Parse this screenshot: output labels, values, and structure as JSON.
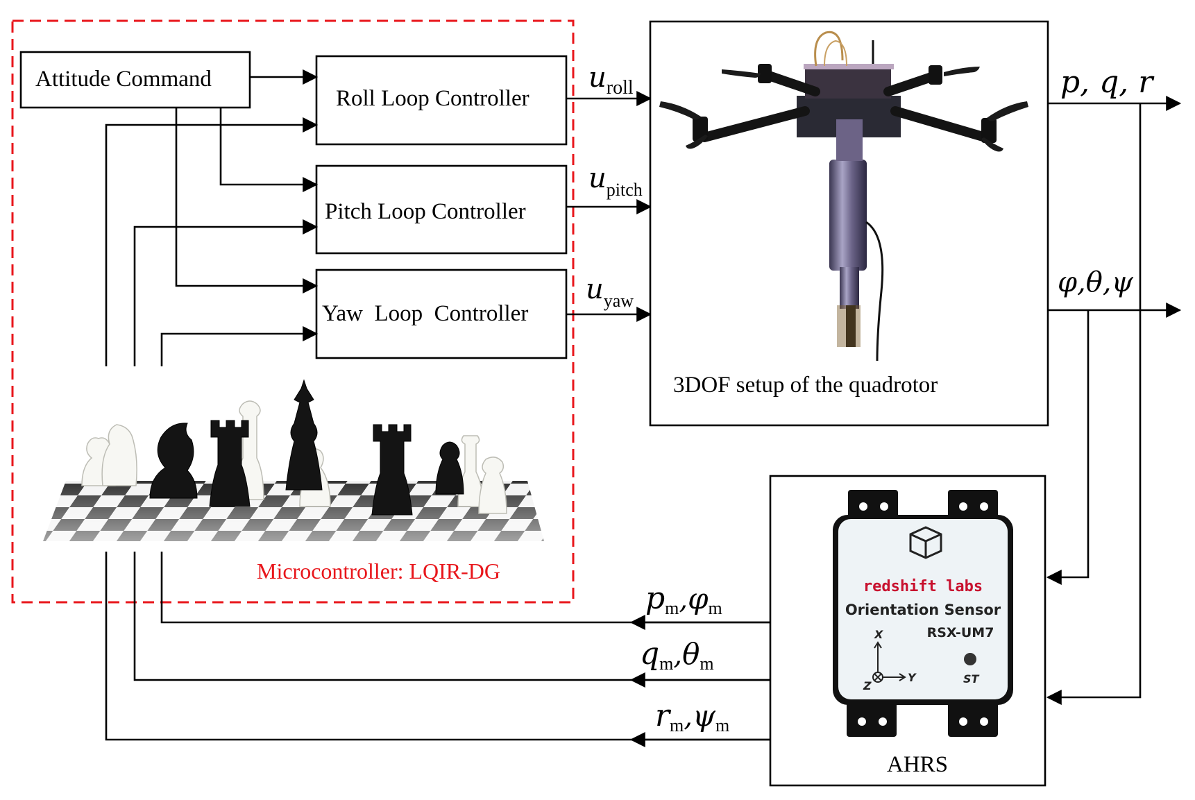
{
  "attitude_command": "Attitude Command",
  "controllers": {
    "roll": "Roll Loop Controller",
    "pitch": "Pitch Loop Controller",
    "yaw": "Yaw  Loop  Controller"
  },
  "control_signals": {
    "u_roll": {
      "symbol": "u",
      "sub": "roll"
    },
    "u_pitch": {
      "symbol": "u",
      "sub": "pitch"
    },
    "u_yaw": {
      "symbol": "u",
      "sub": "yaw"
    }
  },
  "plant_label": "3DOF setup of the quadrotor",
  "outputs": {
    "rates": "p, q, r",
    "angles": "φ,θ,ψ"
  },
  "measurements": {
    "pm": {
      "a": "p",
      "a_sub": "m",
      "b": "φ",
      "b_sub": "m"
    },
    "qm": {
      "a": "q",
      "a_sub": "m",
      "b": "θ",
      "b_sub": "m"
    },
    "rm": {
      "a": "r",
      "a_sub": "m",
      "b": "ψ",
      "b_sub": "m"
    }
  },
  "microcontroller_label": "Microcontroller: LQIR-DG",
  "ahrs": {
    "label": "AHRS",
    "brand": "redshift labs",
    "line1": "Orientation Sensor",
    "line2": "RSX-UM7",
    "axis_x": "X",
    "axis_y": "Y",
    "axis_z": "Z",
    "st": "ST"
  },
  "colors": {
    "microcontroller_border": "#e8161b",
    "brand_red": "#c8102e",
    "line": "#000000"
  }
}
